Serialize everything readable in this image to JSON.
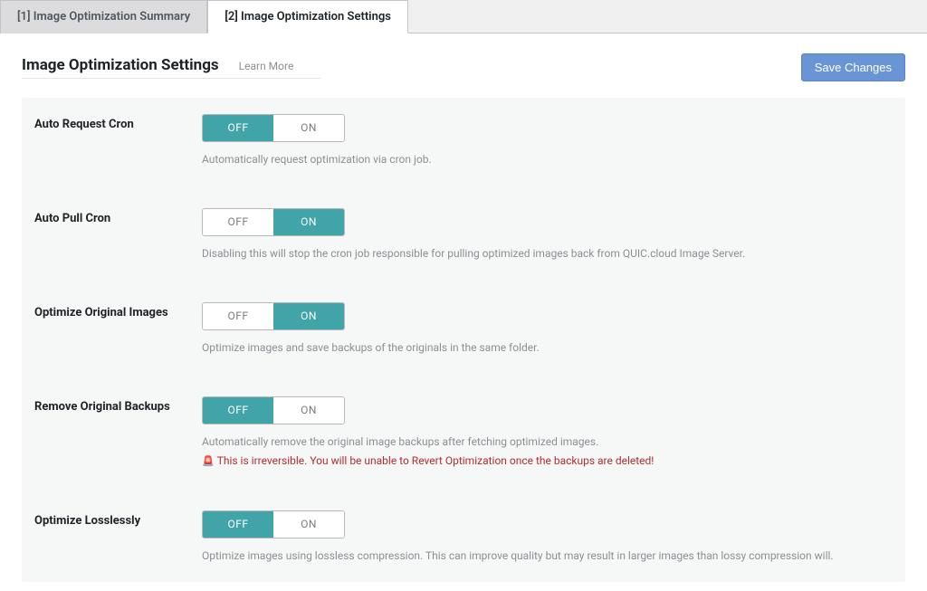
{
  "tabs": [
    {
      "label": "[1] Image Optimization Summary",
      "active": false
    },
    {
      "label": "[2] Image Optimization Settings",
      "active": true
    }
  ],
  "header": {
    "title": "Image Optimization Settings",
    "learn_more": "Learn More",
    "save": "Save Changes"
  },
  "toggle": {
    "off": "OFF",
    "on": "ON"
  },
  "colors": {
    "toggle_selected": "#41a4a8",
    "save_btn": "#6995d6",
    "warn": "#b32d2e",
    "desc": "#8c8f94"
  },
  "settings": [
    {
      "key": "auto_request_cron",
      "label": "Auto Request Cron",
      "value": "OFF",
      "desc": "Automatically request optimization via cron job."
    },
    {
      "key": "auto_pull_cron",
      "label": "Auto Pull Cron",
      "value": "ON",
      "desc": "Disabling this will stop the cron job responsible for pulling optimized images back from QUIC.cloud Image Server."
    },
    {
      "key": "optimize_original_images",
      "label": "Optimize Original Images",
      "value": "ON",
      "desc": "Optimize images and save backups of the originals in the same folder."
    },
    {
      "key": "remove_original_backups",
      "label": "Remove Original Backups",
      "value": "OFF",
      "desc": "Automatically remove the original image backups after fetching optimized images.",
      "warn": "This is irreversible. You will be unable to Revert Optimization once the backups are deleted!"
    },
    {
      "key": "optimize_losslessly",
      "label": "Optimize Losslessly",
      "value": "OFF",
      "desc": "Optimize images using lossless compression. This can improve quality but may result in larger images than lossy compression will."
    }
  ]
}
